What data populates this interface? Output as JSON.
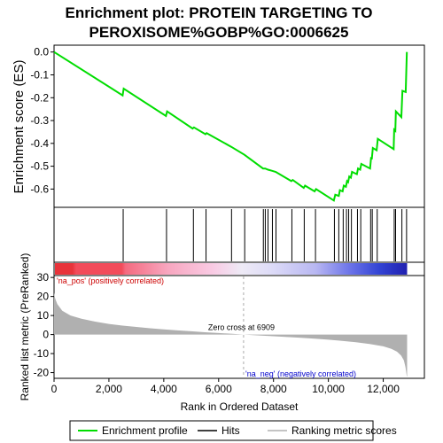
{
  "chart_data": {
    "type": "line",
    "title": "Enrichment plot: PROTEIN TARGETING TO PEROXISOME%GOBP%GO:0006625",
    "title_lines": [
      "Enrichment plot: PROTEIN TARGETING TO",
      "PEROXISOME%GOBP%GO:0006625"
    ],
    "xlabel": "Rank in Ordered Dataset",
    "xlim": [
      0,
      13500
    ],
    "x_ticks": [
      0,
      2000,
      4000,
      6000,
      8000,
      10000,
      12000
    ],
    "x_tick_labels": [
      "0",
      "2,000",
      "4,000",
      "6,000",
      "8,000",
      "10,000",
      "12,000"
    ],
    "es_panel": {
      "ylabel": "Enrichment score (ES)",
      "ylim": [
        -0.68,
        0.03
      ],
      "y_ticks": [
        0.0,
        -0.1,
        -0.2,
        -0.3,
        -0.4,
        -0.5,
        -0.6
      ],
      "y_tick_labels": [
        "0.0",
        "-0.1",
        "-0.2",
        "-0.3",
        "-0.4",
        "-0.5",
        "-0.6"
      ],
      "series": [
        {
          "name": "Enrichment profile",
          "color": "#00dd00",
          "points": [
            [
              0,
              0.0
            ],
            [
              2500,
              -0.19
            ],
            [
              2540,
              -0.16
            ],
            [
              4080,
              -0.28
            ],
            [
              4120,
              -0.26
            ],
            [
              5050,
              -0.335
            ],
            [
              5100,
              -0.33
            ],
            [
              5520,
              -0.36
            ],
            [
              5560,
              -0.355
            ],
            [
              6460,
              -0.415
            ],
            [
              6940,
              -0.45
            ],
            [
              7620,
              -0.51
            ],
            [
              7700,
              -0.51
            ],
            [
              7800,
              -0.515
            ],
            [
              7950,
              -0.52
            ],
            [
              8080,
              -0.525
            ],
            [
              8650,
              -0.565
            ],
            [
              8700,
              -0.56
            ],
            [
              9100,
              -0.595
            ],
            [
              9150,
              -0.585
            ],
            [
              9500,
              -0.61
            ],
            [
              9550,
              -0.6
            ],
            [
              10200,
              -0.65
            ],
            [
              10250,
              -0.625
            ],
            [
              10380,
              -0.63
            ],
            [
              10420,
              -0.605
            ],
            [
              10520,
              -0.61
            ],
            [
              10560,
              -0.585
            ],
            [
              10640,
              -0.59
            ],
            [
              10680,
              -0.565
            ],
            [
              10720,
              -0.57
            ],
            [
              10760,
              -0.545
            ],
            [
              10820,
              -0.55
            ],
            [
              10860,
              -0.525
            ],
            [
              11040,
              -0.535
            ],
            [
              11080,
              -0.51
            ],
            [
              11160,
              -0.515
            ],
            [
              11200,
              -0.49
            ],
            [
              11520,
              -0.51
            ],
            [
              11560,
              -0.46
            ],
            [
              11580,
              -0.47
            ],
            [
              11620,
              -0.42
            ],
            [
              11760,
              -0.43
            ],
            [
              11800,
              -0.38
            ],
            [
              12380,
              -0.425
            ],
            [
              12400,
              -0.34
            ],
            [
              12440,
              -0.345
            ],
            [
              12460,
              -0.26
            ],
            [
              12660,
              -0.285
            ],
            [
              12700,
              -0.17
            ],
            [
              12820,
              -0.175
            ],
            [
              12860,
              0.0
            ]
          ]
        }
      ]
    },
    "hits": {
      "name": "Hits",
      "ranks": [
        2520,
        4100,
        5080,
        5540,
        6470,
        6950,
        7630,
        7700,
        7800,
        7960,
        8090,
        8670,
        9120,
        9530,
        10220,
        10380,
        10540,
        10660,
        10740,
        10840,
        11060,
        11180,
        11540,
        11600,
        11780,
        12400,
        12450,
        12680,
        12850
      ]
    },
    "heatmap_bar": {
      "total": 12870,
      "stops": [
        {
          "at": 0.0,
          "color": "#e8333a"
        },
        {
          "at": 0.05,
          "color": "#e8333a"
        },
        {
          "at": 0.06,
          "color": "#f24b5a"
        },
        {
          "at": 0.19,
          "color": "#f24b5a"
        },
        {
          "at": 0.2,
          "color": "#f46a7f"
        },
        {
          "at": 0.32,
          "color": "#f8a6bf"
        },
        {
          "at": 0.45,
          "color": "#f9cbe4"
        },
        {
          "at": 0.53,
          "color": "#eeeaf6"
        },
        {
          "at": 0.62,
          "color": "#dcdaf7"
        },
        {
          "at": 0.74,
          "color": "#b8b7f2"
        },
        {
          "at": 0.84,
          "color": "#6a72e8"
        },
        {
          "at": 0.92,
          "color": "#3344d4"
        },
        {
          "at": 1.0,
          "color": "#2020b0"
        }
      ]
    },
    "metric_panel": {
      "ylabel": "Ranked list metric (PreRanked)",
      "ylim": [
        -23,
        31
      ],
      "y_ticks": [
        30,
        20,
        10,
        0,
        -10,
        -20
      ],
      "y_tick_labels": [
        "30",
        "20",
        "10",
        "0",
        "-10",
        "-20"
      ],
      "fill_color": "#b0b0b0",
      "curve": [
        [
          0,
          22
        ],
        [
          40,
          19
        ],
        [
          120,
          16
        ],
        [
          300,
          12.5
        ],
        [
          600,
          10
        ],
        [
          1000,
          8.3
        ],
        [
          1500,
          6.8
        ],
        [
          2000,
          5.6
        ],
        [
          2500,
          4.7
        ],
        [
          3000,
          4.0
        ],
        [
          3500,
          3.3
        ],
        [
          4000,
          2.7
        ],
        [
          4500,
          2.2
        ],
        [
          5000,
          1.7
        ],
        [
          5500,
          1.2
        ],
        [
          6000,
          0.8
        ],
        [
          6500,
          0.4
        ],
        [
          6909,
          0.0
        ],
        [
          7400,
          -0.4
        ],
        [
          8000,
          -0.9
        ],
        [
          8500,
          -1.3
        ],
        [
          9000,
          -1.7
        ],
        [
          9500,
          -2.2
        ],
        [
          10000,
          -2.7
        ],
        [
          10500,
          -3.3
        ],
        [
          11000,
          -4.0
        ],
        [
          11500,
          -5.0
        ],
        [
          12000,
          -6.2
        ],
        [
          12300,
          -7.5
        ],
        [
          12500,
          -9.0
        ],
        [
          12650,
          -11.0
        ],
        [
          12750,
          -13.5
        ],
        [
          12810,
          -17.0
        ],
        [
          12860,
          -22.0
        ],
        [
          12870,
          -22.0
        ]
      ],
      "zero_cross": 6909,
      "zero_cross_label": "Zero cross at 6909",
      "pos_label": "'na_pos' (positively correlated)",
      "neg_label": "'na_neg' (negatively correlated)",
      "pos_color": "#cc0000",
      "neg_color": "#0000cc"
    },
    "legend": {
      "placement": "bottom",
      "items": [
        {
          "label": "Enrichment profile",
          "color": "#00dd00",
          "kind": "line"
        },
        {
          "label": "Hits",
          "color": "#000000",
          "kind": "line"
        },
        {
          "label": "Ranking metric scores",
          "color": "#b0b0b0",
          "kind": "line"
        }
      ]
    }
  }
}
